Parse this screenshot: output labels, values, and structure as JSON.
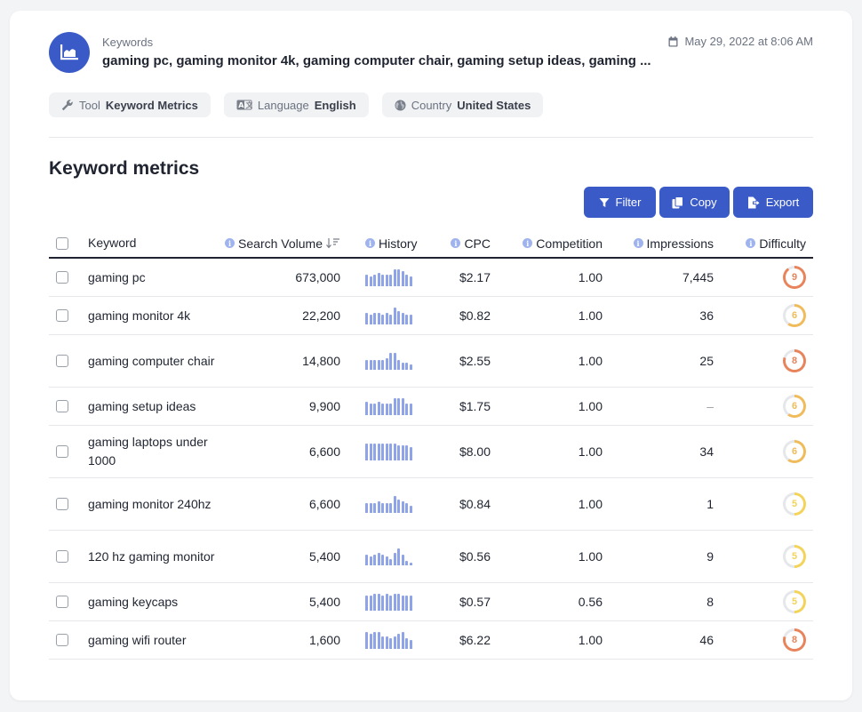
{
  "header": {
    "keywords_label": "Keywords",
    "keywords_value": "gaming pc, gaming monitor 4k, gaming computer chair, gaming setup ideas, gaming ...",
    "date": "May 29, 2022 at 8:06 AM"
  },
  "chips": [
    {
      "label": "Tool",
      "value": "Keyword Metrics",
      "icon": "wrench-icon"
    },
    {
      "label": "Language",
      "value": "English",
      "icon": "language-icon"
    },
    {
      "label": "Country",
      "value": "United States",
      "icon": "globe-icon"
    }
  ],
  "section_title": "Keyword metrics",
  "actions": {
    "filter": "Filter",
    "copy": "Copy",
    "export": "Export"
  },
  "columns": {
    "keyword": "Keyword",
    "search_volume": "Search Volume",
    "history": "History",
    "cpc": "CPC",
    "competition": "Competition",
    "impressions": "Impressions",
    "difficulty": "Difficulty"
  },
  "colors": {
    "accent": "#3a5bc7",
    "spark": "#8fa4e8",
    "diff_high": "#e8845c",
    "diff_mid": "#f0bb5a",
    "diff_low": "#f3d35a"
  },
  "rows": [
    {
      "keyword": "gaming pc",
      "volume": "673,000",
      "history": [
        6,
        5,
        6,
        7,
        6,
        6,
        6,
        9,
        9,
        8,
        6,
        5
      ],
      "cpc": "$2.17",
      "competition": "1.00",
      "impressions": "7,445",
      "difficulty": "9"
    },
    {
      "keyword": "gaming monitor 4k",
      "volume": "22,200",
      "history": [
        6,
        5,
        6,
        6,
        5,
        6,
        5,
        9,
        7,
        6,
        5,
        5
      ],
      "cpc": "$0.82",
      "competition": "1.00",
      "impressions": "36",
      "difficulty": "6"
    },
    {
      "keyword": "gaming computer chair",
      "volume": "14,800",
      "history": [
        5,
        5,
        5,
        5,
        5,
        6,
        9,
        9,
        5,
        4,
        4,
        3
      ],
      "cpc": "$2.55",
      "competition": "1.00",
      "impressions": "25",
      "difficulty": "8"
    },
    {
      "keyword": "gaming setup ideas",
      "volume": "9,900",
      "history": [
        7,
        6,
        6,
        7,
        6,
        6,
        6,
        9,
        9,
        9,
        6,
        6
      ],
      "cpc": "$1.75",
      "competition": "1.00",
      "impressions": "–",
      "difficulty": "6"
    },
    {
      "keyword": "gaming laptops under 1000",
      "volume": "6,600",
      "history": [
        9,
        9,
        9,
        9,
        9,
        9,
        9,
        9,
        8,
        8,
        8,
        7
      ],
      "cpc": "$8.00",
      "competition": "1.00",
      "impressions": "34",
      "difficulty": "6"
    },
    {
      "keyword": "gaming monitor 240hz",
      "volume": "6,600",
      "history": [
        5,
        5,
        5,
        6,
        5,
        5,
        5,
        9,
        7,
        6,
        5,
        4
      ],
      "cpc": "$0.84",
      "competition": "1.00",
      "impressions": "1",
      "difficulty": "5"
    },
    {
      "keyword": "120 hz gaming monitor",
      "volume": "5,400",
      "history": [
        5,
        4,
        5,
        6,
        5,
        4,
        3,
        6,
        8,
        5,
        2,
        1
      ],
      "cpc": "$0.56",
      "competition": "1.00",
      "impressions": "9",
      "difficulty": "5"
    },
    {
      "keyword": "gaming keycaps",
      "volume": "5,400",
      "history": [
        7,
        7,
        8,
        8,
        7,
        8,
        7,
        8,
        8,
        7,
        7,
        7
      ],
      "cpc": "$0.57",
      "competition": "0.56",
      "impressions": "8",
      "difficulty": "5"
    },
    {
      "keyword": "gaming wifi router",
      "volume": "1,600",
      "history": [
        8,
        7,
        8,
        8,
        6,
        6,
        5,
        6,
        7,
        8,
        5,
        4
      ],
      "cpc": "$6.22",
      "competition": "1.00",
      "impressions": "46",
      "difficulty": "8"
    }
  ]
}
